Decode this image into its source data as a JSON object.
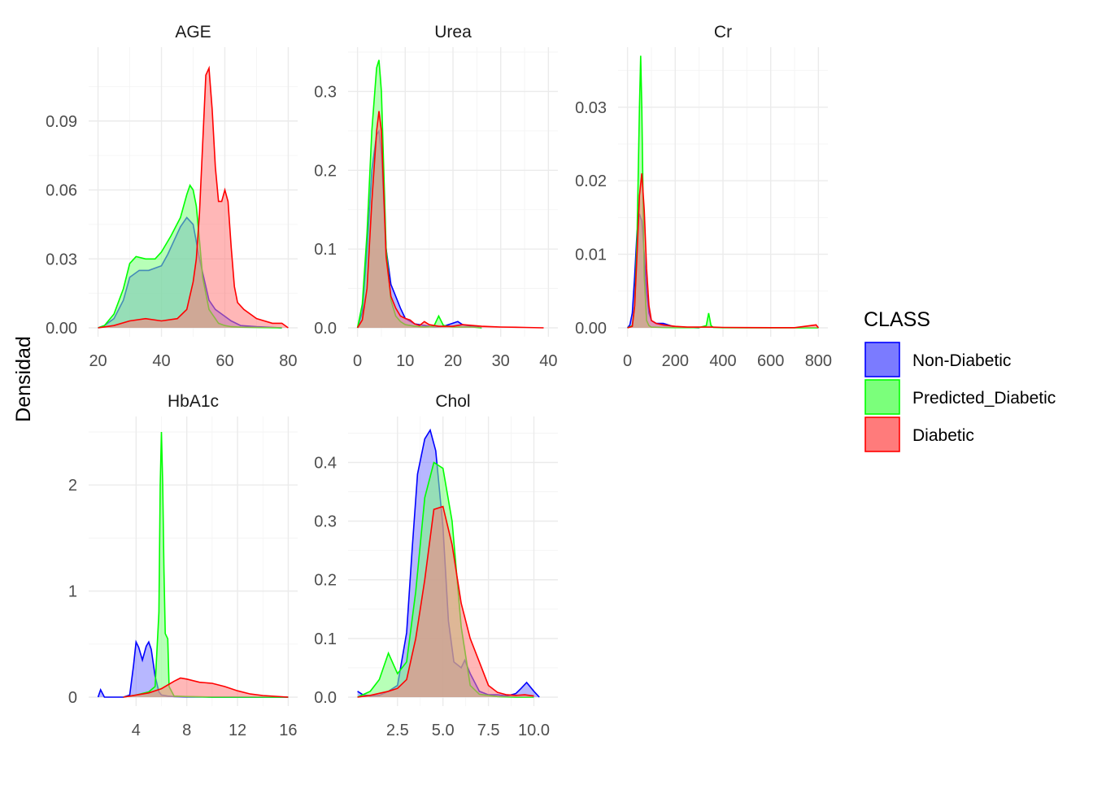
{
  "chart_data": {
    "type": "area",
    "ylabel": "Densidad",
    "legend": {
      "title": "CLASS",
      "position": "right",
      "items": [
        {
          "name": "Non-Diabetic",
          "fill": "#7b7bff",
          "stroke": "#0000ff"
        },
        {
          "name": "Predicted_Diabetic",
          "fill": "#7bff7b",
          "stroke": "#00ff00"
        },
        {
          "name": "Diabetic",
          "fill": "#ff7b7b",
          "stroke": "#ff0000"
        }
      ]
    },
    "panels": [
      {
        "title": "AGE",
        "xlim": [
          20,
          80
        ],
        "ylim": [
          0,
          0.12
        ],
        "xticks": [
          20,
          40,
          60,
          80
        ],
        "xtick_labels": [
          "20",
          "40",
          "60",
          "80"
        ],
        "yticks": [
          0,
          0.03,
          0.06,
          0.09
        ],
        "ytick_labels": [
          "0.00",
          "0.03",
          "0.06",
          "0.09"
        ],
        "series": [
          {
            "name": "Non-Diabetic",
            "x": [
              20,
              22,
              25,
              28,
              30,
              33,
              36,
              40,
              42,
              44,
              46,
              48,
              50,
              52,
              55,
              57,
              60,
              62,
              65,
              70,
              78
            ],
            "y": [
              0,
              0.001,
              0.004,
              0.012,
              0.022,
              0.025,
              0.025,
              0.027,
              0.032,
              0.038,
              0.044,
              0.048,
              0.045,
              0.03,
              0.012,
              0.008,
              0.005,
              0.003,
              0.001,
              0.0005,
              0
            ]
          },
          {
            "name": "Predicted_Diabetic",
            "x": [
              20,
              22,
              25,
              28,
              30,
              32,
              35,
              38,
              40,
              43,
              46,
              48,
              49,
              50,
              51,
              52,
              53,
              55,
              58,
              60,
              62,
              65,
              78
            ],
            "y": [
              0,
              0.001,
              0.006,
              0.017,
              0.028,
              0.031,
              0.03,
              0.03,
              0.033,
              0.04,
              0.048,
              0.058,
              0.062,
              0.06,
              0.053,
              0.038,
              0.022,
              0.008,
              0.002,
              0.001,
              0.0005,
              0.0003,
              0
            ]
          },
          {
            "name": "Diabetic",
            "x": [
              20,
              25,
              30,
              35,
              40,
              45,
              48,
              50,
              51,
              52,
              53,
              54,
              55,
              56,
              57,
              58,
              59,
              60,
              61,
              62,
              63,
              64,
              66,
              70,
              75,
              78,
              80
            ],
            "y": [
              0,
              0.001,
              0.003,
              0.004,
              0.003,
              0.004,
              0.008,
              0.02,
              0.03,
              0.05,
              0.08,
              0.11,
              0.113,
              0.095,
              0.07,
              0.055,
              0.055,
              0.06,
              0.055,
              0.035,
              0.018,
              0.011,
              0.008,
              0.004,
              0.002,
              0.002,
              0
            ]
          }
        ]
      },
      {
        "title": "Urea",
        "xlim": [
          0,
          40
        ],
        "ylim": [
          0,
          0.35
        ],
        "xticks": [
          0,
          10,
          20,
          30,
          40
        ],
        "xtick_labels": [
          "0",
          "10",
          "20",
          "30",
          "40"
        ],
        "yticks": [
          0,
          0.1,
          0.2,
          0.3
        ],
        "ytick_labels": [
          "0.0",
          "0.1",
          "0.2",
          "0.3"
        ],
        "series": [
          {
            "name": "Non-Diabetic",
            "x": [
              0,
              1,
              2,
              3,
              4,
              4.5,
              5,
              5.5,
              6,
              7,
              8,
              9,
              10,
              12,
              14,
              16,
              18,
              20,
              21,
              22,
              24,
              26
            ],
            "y": [
              0,
              0.02,
              0.1,
              0.2,
              0.245,
              0.25,
              0.22,
              0.16,
              0.1,
              0.055,
              0.04,
              0.025,
              0.012,
              0.005,
              0.003,
              0.001,
              0.002,
              0.006,
              0.008,
              0.004,
              0.002,
              0
            ]
          },
          {
            "name": "Predicted_Diabetic",
            "x": [
              0,
              1,
              2,
              3,
              4,
              4.5,
              5,
              5.5,
              6,
              7,
              8,
              9,
              10,
              12,
              14,
              16,
              17,
              18,
              20,
              22,
              24,
              26
            ],
            "y": [
              0,
              0.03,
              0.12,
              0.25,
              0.33,
              0.34,
              0.3,
              0.2,
              0.1,
              0.035,
              0.015,
              0.008,
              0.004,
              0.002,
              0.001,
              0.002,
              0.015,
              0.003,
              0.001,
              0.001,
              0.001,
              0
            ]
          },
          {
            "name": "Diabetic",
            "x": [
              0,
              1,
              2,
              3,
              4,
              4.5,
              5,
              5.5,
              6,
              7,
              8,
              9,
              10,
              11,
              12,
              13,
              14,
              15,
              17,
              20,
              22,
              24,
              26,
              30,
              35,
              39
            ],
            "y": [
              0,
              0.01,
              0.05,
              0.16,
              0.25,
              0.275,
              0.25,
              0.17,
              0.09,
              0.04,
              0.025,
              0.015,
              0.012,
              0.01,
              0.005,
              0.003,
              0.008,
              0.004,
              0.002,
              0.002,
              0.004,
              0.003,
              0.002,
              0.001,
              0.0005,
              0
            ]
          }
        ]
      },
      {
        "title": "Cr",
        "xlim": [
          0,
          800
        ],
        "ylim": [
          0,
          0.0375
        ],
        "xticks": [
          0,
          200,
          400,
          600,
          800
        ],
        "xtick_labels": [
          "0",
          "200",
          "400",
          "600",
          "800"
        ],
        "yticks": [
          0,
          0.01,
          0.02,
          0.03
        ],
        "ytick_labels": [
          "0.00",
          "0.01",
          "0.02",
          "0.03"
        ],
        "series": [
          {
            "name": "Non-Diabetic",
            "x": [
              0,
              10,
              20,
              30,
              40,
              50,
              60,
              70,
              80,
              90,
              100,
              120,
              150,
              180,
              200,
              250,
              300
            ],
            "y": [
              0,
              0.0004,
              0.002,
              0.007,
              0.013,
              0.0155,
              0.0145,
              0.01,
              0.005,
              0.002,
              0.001,
              0.0006,
              0.0006,
              0.0003,
              0.0001,
              5e-05,
              0
            ]
          },
          {
            "name": "Predicted_Diabetic",
            "x": [
              0,
              20,
              30,
              40,
              50,
              55,
              60,
              65,
              70,
              80,
              90,
              100,
              150,
              200,
              300,
              330,
              340,
              350,
              360,
              400,
              500,
              600,
              800
            ],
            "y": [
              0,
              0.0003,
              0.003,
              0.012,
              0.03,
              0.037,
              0.03,
              0.018,
              0.007,
              0.001,
              0.0003,
              0.0001,
              5e-05,
              3e-05,
              3e-05,
              0.0003,
              0.002,
              0.0003,
              5e-05,
              2e-05,
              1e-05,
              1e-05,
              0
            ]
          },
          {
            "name": "Diabetic",
            "x": [
              0,
              20,
              30,
              40,
              50,
              60,
              70,
              80,
              90,
              100,
              120,
              150,
              200,
              250,
              300,
              350,
              400,
              500,
              600,
              700,
              790,
              800
            ],
            "y": [
              0,
              0.0002,
              0.003,
              0.01,
              0.018,
              0.021,
              0.016,
              0.008,
              0.003,
              0.001,
              0.0006,
              0.0004,
              0.0002,
              0.0001,
              0.0001,
              0.0001,
              5e-05,
              3e-05,
              2e-05,
              2e-05,
              0.0004,
              0
            ]
          }
        ]
      },
      {
        "title": "HbA1c",
        "xlim": [
          1,
          16
        ],
        "ylim": [
          0,
          2.6
        ],
        "xticks": [
          4,
          8,
          12,
          16
        ],
        "xtick_labels": [
          "4",
          "8",
          "12",
          "16"
        ],
        "yticks": [
          0,
          1,
          2
        ],
        "ytick_labels": [
          "0",
          "1",
          "2"
        ],
        "series": [
          {
            "name": "Non-Diabetic",
            "x": [
              1,
              1.2,
              1.5,
              2,
              3,
              3.5,
              3.8,
              4,
              4.2,
              4.5,
              4.8,
              5,
              5.2,
              5.5,
              5.8,
              6,
              6.5,
              7,
              8,
              10,
              12,
              14,
              16
            ],
            "y": [
              0,
              0.07,
              0,
              0,
              0,
              0.02,
              0.3,
              0.52,
              0.47,
              0.35,
              0.48,
              0.52,
              0.45,
              0.2,
              0.05,
              0.02,
              0.01,
              0.005,
              0.002,
              0.001,
              0,
              0,
              0
            ]
          },
          {
            "name": "Predicted_Diabetic",
            "x": [
              3,
              4,
              5,
              5.5,
              5.8,
              5.9,
              6,
              6.1,
              6.2,
              6.3,
              6.5,
              6.6,
              7,
              8,
              10,
              12,
              14,
              16
            ],
            "y": [
              0,
              0.02,
              0.05,
              0.1,
              0.8,
              2.0,
              2.5,
              2.0,
              1.2,
              0.6,
              0.55,
              0.1,
              0.01,
              0.005,
              0.001,
              0,
              0,
              0
            ]
          },
          {
            "name": "Diabetic",
            "x": [
              3,
              4,
              5,
              6,
              7,
              7.5,
              8,
              9,
              10,
              11,
              12,
              13,
              14,
              15,
              16
            ],
            "y": [
              0,
              0.02,
              0.04,
              0.08,
              0.15,
              0.18,
              0.17,
              0.14,
              0.13,
              0.1,
              0.06,
              0.03,
              0.015,
              0.008,
              0
            ]
          }
        ]
      },
      {
        "title": "Chol",
        "xlim": [
          0.3,
          10.8
        ],
        "ylim": [
          0,
          0.47
        ],
        "xticks": [
          2.5,
          5.0,
          7.5,
          10.0
        ],
        "xtick_labels": [
          "2.5",
          "5.0",
          "7.5",
          "10.0"
        ],
        "yticks": [
          0,
          0.1,
          0.2,
          0.3,
          0.4
        ],
        "ytick_labels": [
          "0.0",
          "0.1",
          "0.2",
          "0.3",
          "0.4"
        ],
        "series": [
          {
            "name": "Non-Diabetic",
            "x": [
              0.3,
              0.6,
              1,
              1.5,
              2,
              2.5,
              3,
              3.3,
              3.6,
              4,
              4.3,
              4.6,
              5,
              5.3,
              5.6,
              6,
              6.2,
              6.5,
              7,
              7.5,
              8,
              8.5,
              9,
              9.3,
              9.6,
              10,
              10.3
            ],
            "y": [
              0.01,
              0.004,
              0.002,
              0.003,
              0.01,
              0.02,
              0.11,
              0.25,
              0.38,
              0.44,
              0.455,
              0.42,
              0.29,
              0.13,
              0.06,
              0.05,
              0.063,
              0.04,
              0.01,
              0.004,
              0.004,
              0.002,
              0.006,
              0.015,
              0.025,
              0.01,
              0
            ]
          },
          {
            "name": "Predicted_Diabetic",
            "x": [
              0.3,
              1,
              1.5,
              2,
              2.5,
              3,
              3.5,
              4,
              4.5,
              5,
              5.5,
              6,
              6.5,
              7,
              8,
              9,
              10
            ],
            "y": [
              0,
              0.01,
              0.03,
              0.075,
              0.04,
              0.06,
              0.18,
              0.34,
              0.4,
              0.39,
              0.3,
              0.12,
              0.02,
              0.005,
              0.001,
              0,
              0
            ]
          },
          {
            "name": "Diabetic",
            "x": [
              0.3,
              1,
              2,
              2.5,
              3,
              3.5,
              4,
              4.5,
              5,
              5.5,
              6,
              6.5,
              7,
              7.5,
              8,
              8.5,
              9,
              9.5,
              10
            ],
            "y": [
              0,
              0.003,
              0.01,
              0.015,
              0.03,
              0.1,
              0.2,
              0.32,
              0.325,
              0.26,
              0.16,
              0.1,
              0.06,
              0.02,
              0.008,
              0.004,
              0.003,
              0.004,
              0.002
            ]
          }
        ]
      }
    ]
  }
}
